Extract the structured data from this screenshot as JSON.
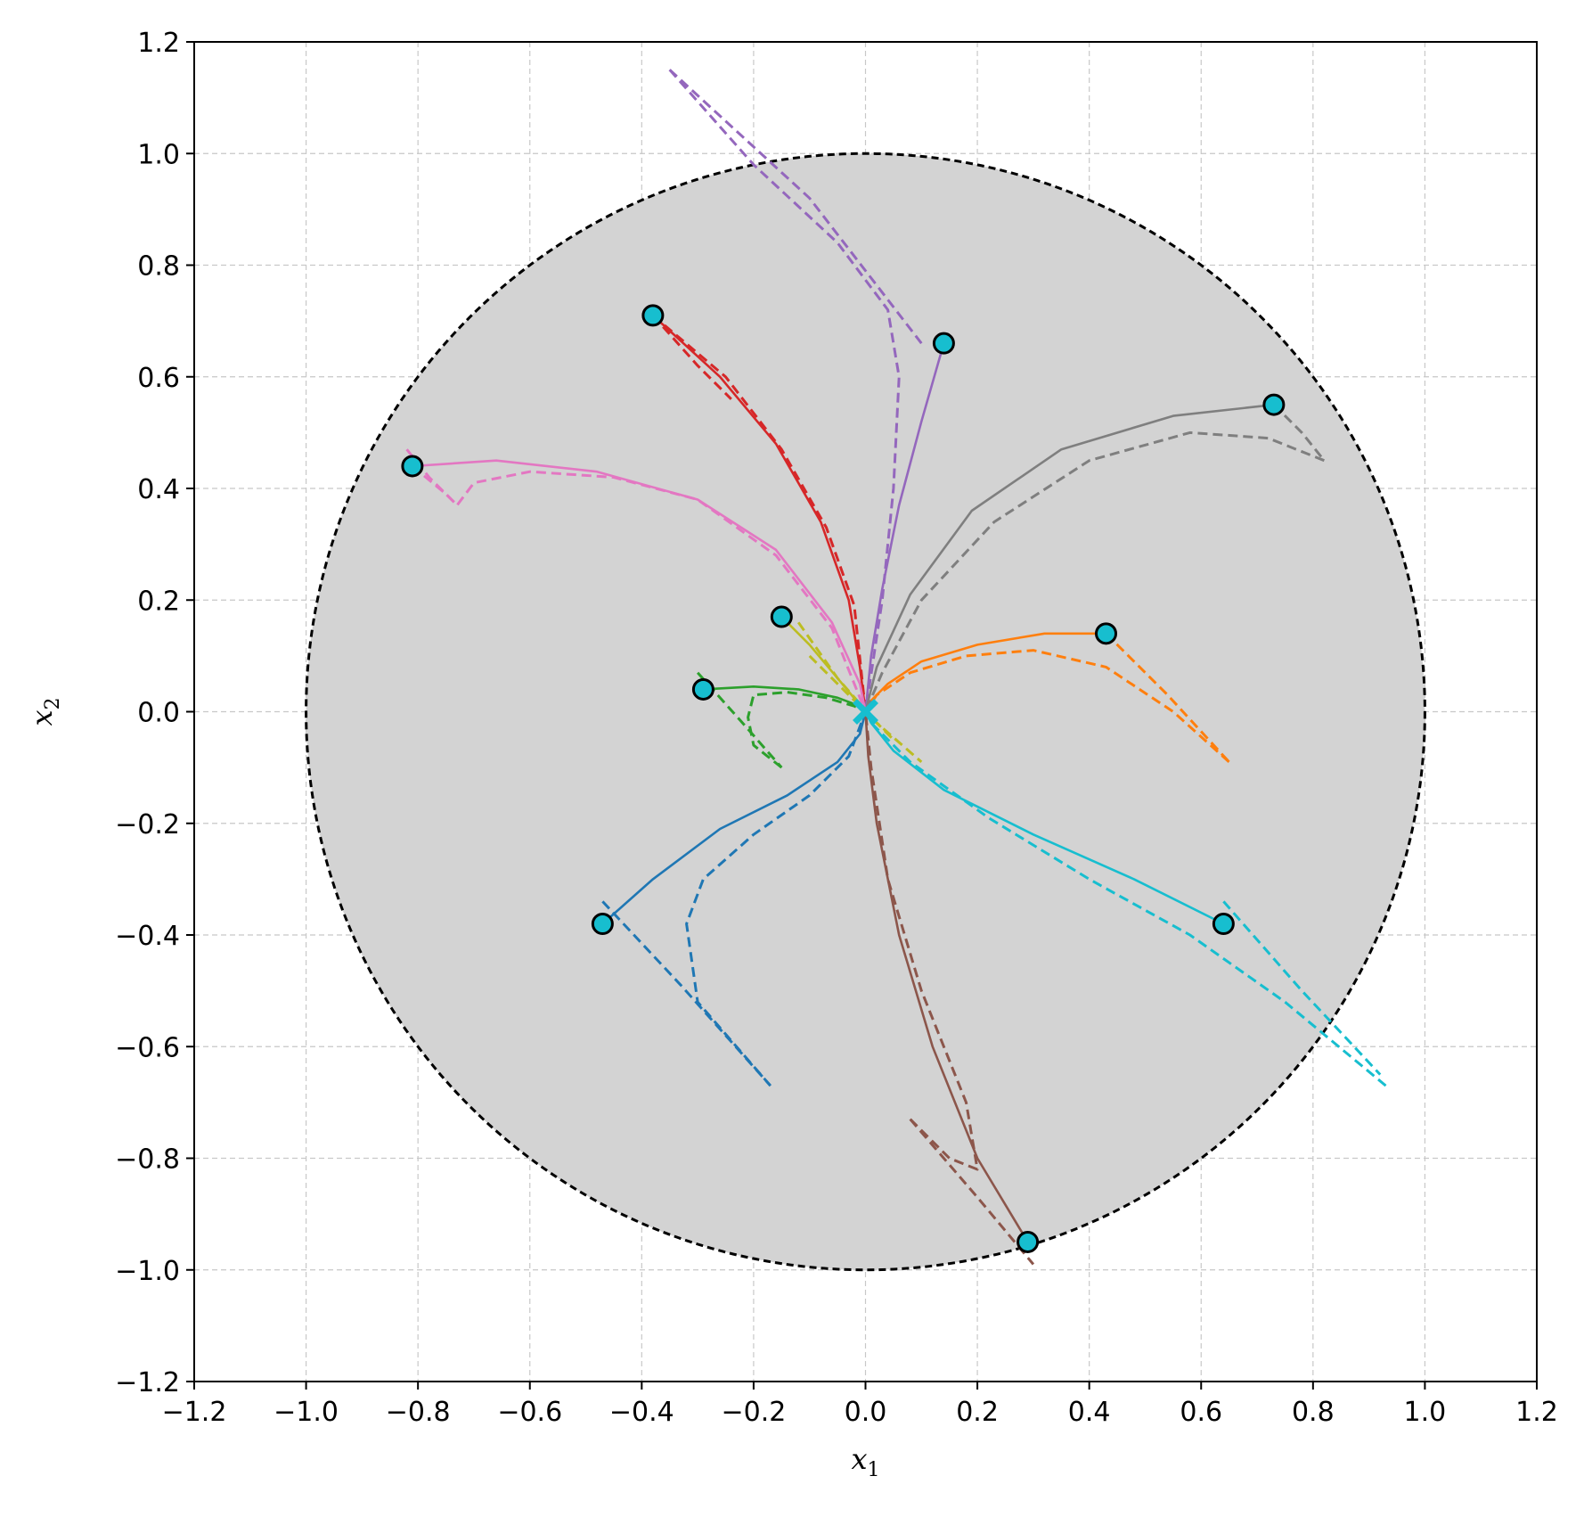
{
  "chart_data": {
    "type": "line",
    "xlabel": "x",
    "xlabel_sub": "1",
    "ylabel": "x",
    "ylabel_sub": "2",
    "xlim": [
      -1.2,
      1.2
    ],
    "ylim": [
      -1.2,
      1.2
    ],
    "xticks": [
      -1.2,
      -1.0,
      -0.8,
      -0.6,
      -0.4,
      -0.2,
      0.0,
      0.2,
      0.4,
      0.6,
      0.8,
      1.0,
      1.2
    ],
    "yticks": [
      -1.2,
      -1.0,
      -0.8,
      -0.6,
      -0.4,
      -0.2,
      0.0,
      0.2,
      0.4,
      0.6,
      0.8,
      1.0,
      1.2
    ],
    "xtick_labels": [
      "−1.2",
      "−1.0",
      "−0.8",
      "−0.6",
      "−0.4",
      "−0.2",
      "0.0",
      "0.2",
      "0.4",
      "0.6",
      "0.8",
      "1.0",
      "1.2"
    ],
    "ytick_labels": [
      "−1.2",
      "−1.0",
      "−0.8",
      "−0.6",
      "−0.4",
      "−0.2",
      "0.0",
      "0.2",
      "0.4",
      "0.6",
      "0.8",
      "1.0",
      "1.2"
    ],
    "grid": true,
    "region": {
      "shape": "circle",
      "center": [
        0,
        0
      ],
      "radius": 1.0,
      "fill": "#d3d3d3",
      "boundary": "dashed"
    },
    "target": {
      "x": 0.0,
      "y": 0.0,
      "marker": "x",
      "color": "#17becf"
    },
    "start_marker_color": "#17becf",
    "trajectories": [
      {
        "color": "#1f77b4",
        "start": [
          -0.47,
          -0.38
        ],
        "solid": [
          [
            -0.47,
            -0.38
          ],
          [
            -0.38,
            -0.3
          ],
          [
            -0.26,
            -0.21
          ],
          [
            -0.14,
            -0.15
          ],
          [
            -0.05,
            -0.09
          ],
          [
            -0.01,
            -0.04
          ],
          [
            0.0,
            0.0
          ]
        ],
        "dashed": [
          [
            -0.17,
            -0.67
          ],
          [
            -0.3,
            -0.52
          ],
          [
            -0.32,
            -0.38
          ],
          [
            -0.29,
            -0.3
          ],
          [
            -0.2,
            -0.22
          ],
          [
            -0.1,
            -0.15
          ],
          [
            -0.03,
            -0.08
          ],
          [
            0.0,
            0.0
          ]
        ],
        "dashed2": [
          [
            -0.47,
            -0.34
          ],
          [
            -0.33,
            -0.49
          ],
          [
            -0.17,
            -0.67
          ]
        ]
      },
      {
        "color": "#ff7f0e",
        "start": [
          0.43,
          0.14
        ],
        "solid": [
          [
            0.43,
            0.14
          ],
          [
            0.32,
            0.14
          ],
          [
            0.2,
            0.12
          ],
          [
            0.1,
            0.09
          ],
          [
            0.04,
            0.05
          ],
          [
            0.01,
            0.02
          ],
          [
            0.0,
            0.0
          ]
        ],
        "dashed": [
          [
            0.65,
            -0.09
          ],
          [
            0.55,
            0.0
          ],
          [
            0.43,
            0.08
          ],
          [
            0.3,
            0.11
          ],
          [
            0.18,
            0.1
          ],
          [
            0.08,
            0.07
          ],
          [
            0.02,
            0.03
          ],
          [
            0.0,
            0.0
          ]
        ],
        "dashed2": [
          [
            0.43,
            0.14
          ],
          [
            0.54,
            0.03
          ],
          [
            0.65,
            -0.09
          ]
        ]
      },
      {
        "color": "#2ca02c",
        "start": [
          -0.29,
          0.04
        ],
        "solid": [
          [
            -0.29,
            0.04
          ],
          [
            -0.2,
            0.045
          ],
          [
            -0.12,
            0.04
          ],
          [
            -0.05,
            0.025
          ],
          [
            -0.01,
            0.01
          ],
          [
            0.0,
            0.0
          ]
        ],
        "dashed": [
          [
            -0.15,
            -0.1
          ],
          [
            -0.2,
            -0.06
          ],
          [
            -0.21,
            -0.01
          ],
          [
            -0.2,
            0.03
          ],
          [
            -0.14,
            0.035
          ],
          [
            -0.07,
            0.025
          ],
          [
            -0.02,
            0.01
          ],
          [
            0.0,
            0.0
          ]
        ],
        "dashed2": [
          [
            -0.3,
            0.07
          ],
          [
            -0.22,
            -0.02
          ],
          [
            -0.15,
            -0.1
          ]
        ]
      },
      {
        "color": "#d62728",
        "start": [
          -0.38,
          0.71
        ],
        "solid": [
          [
            -0.38,
            0.71
          ],
          [
            -0.26,
            0.6
          ],
          [
            -0.16,
            0.48
          ],
          [
            -0.08,
            0.34
          ],
          [
            -0.03,
            0.2
          ],
          [
            -0.01,
            0.08
          ],
          [
            0.0,
            0.0
          ]
        ],
        "dashed": [
          [
            -0.38,
            0.71
          ],
          [
            -0.25,
            0.6
          ],
          [
            -0.15,
            0.47
          ],
          [
            -0.07,
            0.33
          ],
          [
            -0.02,
            0.19
          ],
          [
            0.0,
            0.0
          ]
        ],
        "dashed2": [
          [
            -0.38,
            0.71
          ],
          [
            -0.3,
            0.62
          ],
          [
            -0.24,
            0.56
          ]
        ]
      },
      {
        "color": "#9467bd",
        "start": [
          0.14,
          0.66
        ],
        "solid": [
          [
            0.14,
            0.66
          ],
          [
            0.1,
            0.52
          ],
          [
            0.06,
            0.37
          ],
          [
            0.03,
            0.22
          ],
          [
            0.01,
            0.1
          ],
          [
            0.0,
            0.0
          ]
        ],
        "dashed": [
          [
            -0.35,
            1.15
          ],
          [
            -0.2,
            0.98
          ],
          [
            -0.05,
            0.84
          ],
          [
            0.04,
            0.72
          ],
          [
            0.06,
            0.6
          ],
          [
            0.05,
            0.4
          ],
          [
            0.03,
            0.2
          ],
          [
            0.0,
            0.0
          ]
        ],
        "dashed2": [
          [
            -0.35,
            1.15
          ],
          [
            -0.1,
            0.92
          ],
          [
            0.1,
            0.66
          ]
        ]
      },
      {
        "color": "#8c564b",
        "start": [
          0.29,
          -0.95
        ],
        "solid": [
          [
            0.29,
            -0.95
          ],
          [
            0.2,
            -0.8
          ],
          [
            0.12,
            -0.6
          ],
          [
            0.06,
            -0.4
          ],
          [
            0.02,
            -0.2
          ],
          [
            0.005,
            -0.08
          ],
          [
            0.0,
            0.0
          ]
        ],
        "dashed": [
          [
            0.08,
            -0.73
          ],
          [
            0.15,
            -0.8
          ],
          [
            0.2,
            -0.82
          ],
          [
            0.18,
            -0.7
          ],
          [
            0.1,
            -0.5
          ],
          [
            0.04,
            -0.3
          ],
          [
            0.01,
            -0.1
          ],
          [
            0.0,
            0.0
          ]
        ],
        "dashed2": [
          [
            0.08,
            -0.73
          ],
          [
            0.2,
            -0.87
          ],
          [
            0.3,
            -0.99
          ]
        ]
      },
      {
        "color": "#e377c2",
        "start": [
          -0.81,
          0.44
        ],
        "solid": [
          [
            -0.81,
            0.44
          ],
          [
            -0.66,
            0.45
          ],
          [
            -0.48,
            0.43
          ],
          [
            -0.3,
            0.38
          ],
          [
            -0.16,
            0.29
          ],
          [
            -0.06,
            0.16
          ],
          [
            -0.01,
            0.05
          ],
          [
            0.0,
            0.0
          ]
        ],
        "dashed": [
          [
            -0.82,
            0.47
          ],
          [
            -0.78,
            0.42
          ],
          [
            -0.73,
            0.37
          ],
          [
            -0.7,
            0.41
          ],
          [
            -0.6,
            0.43
          ],
          [
            -0.45,
            0.42
          ],
          [
            -0.3,
            0.38
          ],
          [
            -0.16,
            0.28
          ],
          [
            -0.06,
            0.15
          ],
          [
            0.0,
            0.0
          ]
        ],
        "dashed2": [
          [
            -0.81,
            0.44
          ],
          [
            -0.75,
            0.39
          ],
          [
            -0.73,
            0.37
          ]
        ]
      },
      {
        "color": "#7f7f7f",
        "start": [
          0.73,
          0.55
        ],
        "solid": [
          [
            0.73,
            0.55
          ],
          [
            0.55,
            0.53
          ],
          [
            0.35,
            0.47
          ],
          [
            0.19,
            0.36
          ],
          [
            0.08,
            0.21
          ],
          [
            0.02,
            0.08
          ],
          [
            0.0,
            0.0
          ]
        ],
        "dashed": [
          [
            0.82,
            0.45
          ],
          [
            0.72,
            0.49
          ],
          [
            0.58,
            0.5
          ],
          [
            0.4,
            0.45
          ],
          [
            0.23,
            0.34
          ],
          [
            0.1,
            0.2
          ],
          [
            0.03,
            0.07
          ],
          [
            0.0,
            0.0
          ]
        ],
        "dashed2": [
          [
            0.73,
            0.55
          ],
          [
            0.78,
            0.5
          ],
          [
            0.82,
            0.45
          ]
        ]
      },
      {
        "color": "#bcbd22",
        "start": [
          -0.15,
          0.17
        ],
        "solid": [
          [
            -0.15,
            0.17
          ],
          [
            -0.1,
            0.12
          ],
          [
            -0.05,
            0.06
          ],
          [
            0.0,
            0.0
          ]
        ],
        "dashed": [
          [
            -0.12,
            0.16
          ],
          [
            -0.05,
            0.06
          ],
          [
            0.02,
            -0.02
          ],
          [
            0.1,
            -0.09
          ]
        ],
        "dashed2": [
          [
            -0.1,
            0.1
          ],
          [
            -0.04,
            0.04
          ],
          [
            0.05,
            -0.05
          ]
        ]
      },
      {
        "color": "#17becf",
        "start": [
          0.64,
          -0.38
        ],
        "solid": [
          [
            0.64,
            -0.38
          ],
          [
            0.48,
            -0.3
          ],
          [
            0.3,
            -0.22
          ],
          [
            0.14,
            -0.14
          ],
          [
            0.05,
            -0.07
          ],
          [
            0.01,
            -0.02
          ],
          [
            0.0,
            0.0
          ]
        ],
        "dashed": [
          [
            0.93,
            -0.67
          ],
          [
            0.75,
            -0.52
          ],
          [
            0.58,
            -0.4
          ],
          [
            0.4,
            -0.3
          ],
          [
            0.22,
            -0.19
          ],
          [
            0.08,
            -0.09
          ],
          [
            0.01,
            -0.02
          ],
          [
            0.0,
            0.0
          ]
        ],
        "dashed2": [
          [
            0.64,
            -0.34
          ],
          [
            0.78,
            -0.5
          ],
          [
            0.92,
            -0.65
          ]
        ]
      }
    ]
  }
}
